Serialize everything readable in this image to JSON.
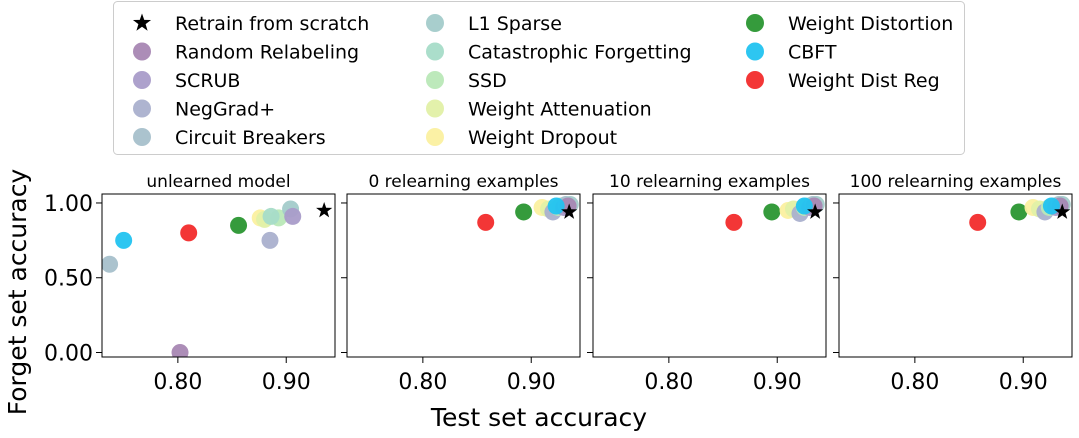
{
  "figure": {
    "xlabel": "Test set accuracy",
    "ylabel": "Forget set accuracy"
  },
  "legend": {
    "placement": "top-center",
    "columns": 3,
    "entries": [
      {
        "label": "Retrain from scratch",
        "color": "#000000",
        "marker": "star"
      },
      {
        "label": "Random Relabeling",
        "color": "#a887b3",
        "marker": "circle"
      },
      {
        "label": "SCRUB",
        "color": "#a99cc9",
        "marker": "circle"
      },
      {
        "label": "NegGrad+",
        "color": "#aab0cd",
        "marker": "circle"
      },
      {
        "label": "Circuit Breakers",
        "color": "#a7c0cb",
        "marker": "circle"
      },
      {
        "label": "L1 Sparse",
        "color": "#a3cbca",
        "marker": "circle"
      },
      {
        "label": "Catastrophic Forgetting",
        "color": "#a6dcc8",
        "marker": "circle"
      },
      {
        "label": "SSD",
        "color": "#b9e8b7",
        "marker": "circle"
      },
      {
        "label": "Weight Attenuation",
        "color": "#e2f0a6",
        "marker": "circle"
      },
      {
        "label": "Weight Dropout",
        "color": "#fbf0a0",
        "marker": "circle"
      },
      {
        "label": "Weight Distortion",
        "color": "#2a9632",
        "marker": "circle"
      },
      {
        "label": "CBFT",
        "color": "#22c3f0",
        "marker": "circle"
      },
      {
        "label": "Weight Dist Reg",
        "color": "#f22b2b",
        "marker": "circle"
      }
    ]
  },
  "chart_data": [
    {
      "type": "scatter",
      "title": "unlearned model",
      "xlim": [
        0.73,
        0.945
      ],
      "ylim": [
        -0.03,
        1.06
      ],
      "xticks": [
        0.8,
        0.9
      ],
      "xtick_labels": [
        "0.80",
        "0.90"
      ],
      "yticks": [
        0.0,
        0.5,
        1.0
      ],
      "ytick_labels": [
        "0.00",
        "0.50",
        "1.00"
      ],
      "points": [
        {
          "method": "Circuit Breakers",
          "x": 0.737,
          "y": 0.59
        },
        {
          "method": "CBFT",
          "x": 0.75,
          "y": 0.75
        },
        {
          "method": "Random Relabeling",
          "x": 0.802,
          "y": 0.0
        },
        {
          "method": "Weight Dist Reg",
          "x": 0.81,
          "y": 0.8
        },
        {
          "method": "Weight Distortion",
          "x": 0.856,
          "y": 0.85
        },
        {
          "method": "Weight Dropout",
          "x": 0.876,
          "y": 0.9
        },
        {
          "method": "Weight Attenuation",
          "x": 0.88,
          "y": 0.89
        },
        {
          "method": "NegGrad+",
          "x": 0.885,
          "y": 0.75
        },
        {
          "method": "SSD",
          "x": 0.893,
          "y": 0.9
        },
        {
          "method": "Catastrophic Forgetting",
          "x": 0.886,
          "y": 0.91
        },
        {
          "method": "L1 Sparse",
          "x": 0.904,
          "y": 0.96
        },
        {
          "method": "SCRUB",
          "x": 0.906,
          "y": 0.91
        },
        {
          "method": "Retrain from scratch",
          "x": 0.935,
          "y": 0.95
        }
      ]
    },
    {
      "type": "scatter",
      "title": "0 relearning examples",
      "xlim": [
        0.73,
        0.945
      ],
      "ylim": [
        -0.03,
        1.06
      ],
      "xticks": [
        0.8,
        0.9
      ],
      "xtick_labels": [
        "0.80",
        "0.90"
      ],
      "yticks": [
        0.0,
        0.5,
        1.0
      ],
      "ytick_labels": [
        "",
        "",
        ""
      ],
      "points": [
        {
          "method": "Weight Dist Reg",
          "x": 0.858,
          "y": 0.87
        },
        {
          "method": "Weight Distortion",
          "x": 0.893,
          "y": 0.94
        },
        {
          "method": "Weight Dropout",
          "x": 0.91,
          "y": 0.97
        },
        {
          "method": "Weight Attenuation",
          "x": 0.916,
          "y": 0.96
        },
        {
          "method": "NegGrad+",
          "x": 0.92,
          "y": 0.94
        },
        {
          "method": "SSD",
          "x": 0.925,
          "y": 0.97
        },
        {
          "method": "Catastrophic Forgetting",
          "x": 0.927,
          "y": 0.98
        },
        {
          "method": "SCRUB",
          "x": 0.93,
          "y": 0.97
        },
        {
          "method": "Circuit Breakers",
          "x": 0.932,
          "y": 0.99
        },
        {
          "method": "L1 Sparse",
          "x": 0.936,
          "y": 0.99
        },
        {
          "method": "Random Relabeling",
          "x": 0.934,
          "y": 0.98
        },
        {
          "method": "CBFT",
          "x": 0.923,
          "y": 0.98
        },
        {
          "method": "Retrain from scratch",
          "x": 0.935,
          "y": 0.94
        }
      ]
    },
    {
      "type": "scatter",
      "title": "10 relearning examples",
      "xlim": [
        0.73,
        0.945
      ],
      "ylim": [
        -0.03,
        1.06
      ],
      "xticks": [
        0.8,
        0.9
      ],
      "xtick_labels": [
        "0.80",
        "0.90"
      ],
      "yticks": [
        0.0,
        0.5,
        1.0
      ],
      "ytick_labels": [
        "",
        "",
        ""
      ],
      "points": [
        {
          "method": "Weight Dist Reg",
          "x": 0.86,
          "y": 0.87
        },
        {
          "method": "Weight Distortion",
          "x": 0.895,
          "y": 0.94
        },
        {
          "method": "Weight Dropout",
          "x": 0.91,
          "y": 0.95
        },
        {
          "method": "Weight Attenuation",
          "x": 0.915,
          "y": 0.96
        },
        {
          "method": "NegGrad+",
          "x": 0.921,
          "y": 0.93
        },
        {
          "method": "SSD",
          "x": 0.925,
          "y": 0.97
        },
        {
          "method": "Catastrophic Forgetting",
          "x": 0.928,
          "y": 0.98
        },
        {
          "method": "SCRUB",
          "x": 0.93,
          "y": 0.97
        },
        {
          "method": "Circuit Breakers",
          "x": 0.933,
          "y": 0.99
        },
        {
          "method": "L1 Sparse",
          "x": 0.936,
          "y": 0.99
        },
        {
          "method": "Random Relabeling",
          "x": 0.934,
          "y": 0.98
        },
        {
          "method": "CBFT",
          "x": 0.925,
          "y": 0.98
        },
        {
          "method": "Retrain from scratch",
          "x": 0.935,
          "y": 0.94
        }
      ]
    },
    {
      "type": "scatter",
      "title": "100 relearning examples",
      "xlim": [
        0.73,
        0.945
      ],
      "ylim": [
        -0.03,
        1.06
      ],
      "xticks": [
        0.8,
        0.9
      ],
      "xtick_labels": [
        "0.80",
        "0.90"
      ],
      "yticks": [
        0.0,
        0.5,
        1.0
      ],
      "ytick_labels": [
        "",
        "",
        ""
      ],
      "points": [
        {
          "method": "Weight Dist Reg",
          "x": 0.858,
          "y": 0.87
        },
        {
          "method": "Weight Distortion",
          "x": 0.896,
          "y": 0.94
        },
        {
          "method": "Weight Dropout",
          "x": 0.909,
          "y": 0.97
        },
        {
          "method": "Weight Attenuation",
          "x": 0.915,
          "y": 0.96
        },
        {
          "method": "NegGrad+",
          "x": 0.92,
          "y": 0.94
        },
        {
          "method": "SSD",
          "x": 0.924,
          "y": 0.97
        },
        {
          "method": "Catastrophic Forgetting",
          "x": 0.928,
          "y": 0.98
        },
        {
          "method": "SCRUB",
          "x": 0.93,
          "y": 0.97
        },
        {
          "method": "Circuit Breakers",
          "x": 0.933,
          "y": 0.99
        },
        {
          "method": "L1 Sparse",
          "x": 0.936,
          "y": 0.99
        },
        {
          "method": "Random Relabeling",
          "x": 0.934,
          "y": 0.98
        },
        {
          "method": "CBFT",
          "x": 0.926,
          "y": 0.98
        },
        {
          "method": "Retrain from scratch",
          "x": 0.936,
          "y": 0.94
        }
      ]
    }
  ]
}
